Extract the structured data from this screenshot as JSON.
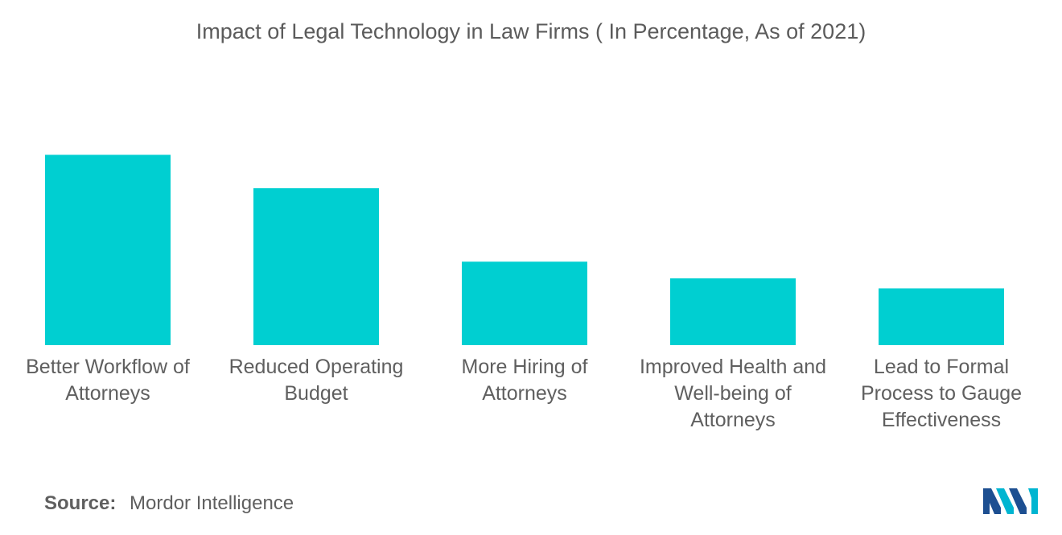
{
  "chart_data": {
    "type": "bar",
    "title": "Impact of Legal Technology in Law Firms ( In Percentage, As of 2021)",
    "categories": [
      [
        "Better Workflow of",
        "Attorneys"
      ],
      [
        "Reduced Operating",
        "Budget"
      ],
      [
        "More Hiring of",
        "Attorneys"
      ],
      [
        "Improved Health and",
        "Well-being of",
        "Attorneys"
      ],
      [
        "Lead to Formal",
        "Process to Gauge",
        "Effectiveness"
      ]
    ],
    "values": [
      57,
      47,
      25,
      20,
      17
    ],
    "ylim": [
      0,
      100
    ],
    "xlabel": "",
    "ylabel": "",
    "grid": false,
    "bar_color": "#00cfd1"
  },
  "source": {
    "label": "Source:",
    "text": "Mordor Intelligence"
  },
  "logo": {
    "colors": [
      "#1d4f91",
      "#00b5d1"
    ]
  }
}
